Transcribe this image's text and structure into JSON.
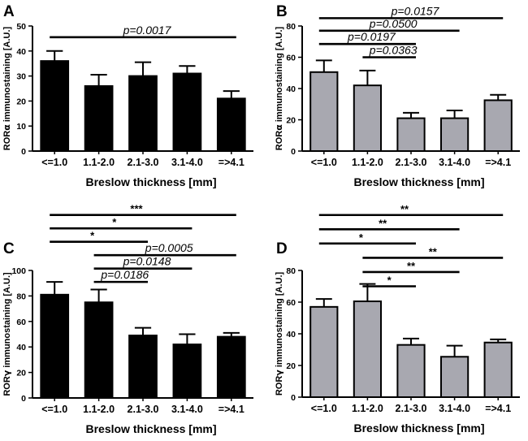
{
  "chart_data": [
    {
      "type": "bar",
      "panel": "A",
      "categories": [
        "<=1.0",
        "1.1-2.0",
        "2.1-3.0",
        "3.1-4.0",
        "=>4.1"
      ],
      "values": [
        36,
        26,
        30,
        31,
        21
      ],
      "errors": [
        4,
        4.5,
        5.5,
        3,
        3
      ],
      "bar_color": "#000000",
      "ylabel_main": "ROR",
      "ylabel_greek": "α",
      "ylabel_rest": " immunostaining [A.U.]",
      "xlabel": "Breslow thickness [mm]",
      "ylim": [
        0,
        50
      ],
      "yticks": [
        0,
        10,
        20,
        30,
        40,
        50
      ],
      "significance": [
        {
          "from": 0,
          "to": 4,
          "label": "p=0.0017",
          "kind": "p",
          "yval": 45.5
        }
      ]
    },
    {
      "type": "bar",
      "panel": "B",
      "categories": [
        "<=1.0",
        "1.1-2.0",
        "2.1-3.0",
        "3.1-4.0",
        "=>4.1"
      ],
      "values": [
        50.5,
        42,
        21,
        21,
        32.5
      ],
      "errors": [
        7.5,
        9.5,
        3.5,
        5,
        3.5
      ],
      "bar_color": "#a8a8b0",
      "ylabel_main": "ROR",
      "ylabel_greek": "α",
      "ylabel_rest": " immunostaining [A.U.]",
      "xlabel": "Breslow thickness [mm]",
      "ylim": [
        0,
        80
      ],
      "yticks": [
        0,
        20,
        40,
        60,
        80
      ],
      "significance": [
        {
          "from": 0,
          "to": 4,
          "label": "p=0.0157",
          "kind": "p",
          "yval": 85
        },
        {
          "from": 0,
          "to": 3,
          "label": "p=0.0500",
          "kind": "p",
          "yval": 77
        },
        {
          "from": 0,
          "to": 2,
          "label": "p=0.0197",
          "kind": "p",
          "yval": 68.5
        },
        {
          "from": 1,
          "to": 2,
          "label": "p=0.0363",
          "kind": "p",
          "yval": 60
        }
      ]
    },
    {
      "type": "bar",
      "panel": "C",
      "categories": [
        "<=1.0",
        "1.1-2.0",
        "2.1-3.0",
        "3.1-4.0",
        "=>4.1"
      ],
      "values": [
        81,
        75,
        49,
        42,
        48
      ],
      "errors": [
        10,
        10,
        6,
        8,
        3
      ],
      "bar_color": "#000000",
      "ylabel_main": "ROR",
      "ylabel_greek": "γ",
      "ylabel_rest": " immunostaining [A.U.]",
      "xlabel": "Breslow thickness [mm]",
      "ylim": [
        0,
        100
      ],
      "yticks": [
        0,
        20,
        40,
        60,
        80,
        100
      ],
      "significance": [
        {
          "from": 0,
          "to": 4,
          "label": "***",
          "kind": "star",
          "yval": 143.5
        },
        {
          "from": 0,
          "to": 3,
          "label": "*",
          "kind": "star",
          "yval": 133
        },
        {
          "from": 0,
          "to": 2,
          "label": "*",
          "kind": "star",
          "yval": 122.5
        },
        {
          "from": 1,
          "to": 4,
          "label": "p=0.0005",
          "kind": "p",
          "yval": 112
        },
        {
          "from": 1,
          "to": 3,
          "label": "p=0.0148",
          "kind": "p",
          "yval": 101.5
        },
        {
          "from": 1,
          "to": 2,
          "label": "p=0.0186",
          "kind": "p",
          "yval": 91
        }
      ]
    },
    {
      "type": "bar",
      "panel": "D",
      "categories": [
        "<=1.0",
        "1.1-2.0",
        "2.1-3.0",
        "3.1-4.0",
        "=>4.1"
      ],
      "values": [
        57,
        60.5,
        33,
        25.5,
        34.5
      ],
      "errors": [
        5,
        11,
        4,
        7,
        2
      ],
      "bar_color": "#a8a8b0",
      "ylabel_main": "ROR",
      "ylabel_greek": "γ",
      "ylabel_rest": " immunostaining [A.U.]",
      "xlabel": "Breslow thickness [mm]",
      "ylim": [
        0,
        80
      ],
      "yticks": [
        0,
        20,
        40,
        60,
        80
      ],
      "significance": [
        {
          "from": 0,
          "to": 4,
          "label": "**",
          "kind": "star",
          "yval": 115
        },
        {
          "from": 0,
          "to": 3,
          "label": "**",
          "kind": "star",
          "yval": 106
        },
        {
          "from": 0,
          "to": 2,
          "label": "*",
          "kind": "star",
          "yval": 97
        },
        {
          "from": 1,
          "to": 4,
          "label": "**",
          "kind": "star",
          "yval": 88
        },
        {
          "from": 1,
          "to": 3,
          "label": "**",
          "kind": "star",
          "yval": 79
        },
        {
          "from": 1,
          "to": 2,
          "label": "*",
          "kind": "star",
          "yval": 70
        }
      ]
    }
  ]
}
